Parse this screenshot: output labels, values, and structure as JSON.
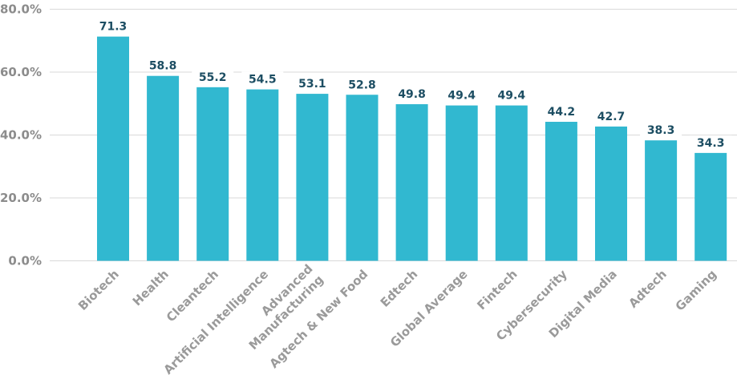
{
  "chart_data": {
    "type": "bar",
    "categories": [
      "Biotech",
      "Health",
      "Cleantech",
      "Artificial Intelligence",
      "Advanced Manufacturing",
      "Agtech & New Food",
      "Edtech",
      "Global Average",
      "Fintech",
      "Cybersecurity",
      "Digital Media",
      "Adtech",
      "Gaming"
    ],
    "category_lines": [
      [
        "Biotech"
      ],
      [
        "Health"
      ],
      [
        "Cleantech"
      ],
      [
        "Artificial Intelligence"
      ],
      [
        "Advanced",
        "Manufacturing"
      ],
      [
        "Agtech & New Food"
      ],
      [
        "Edtech"
      ],
      [
        "Global Average"
      ],
      [
        "Fintech"
      ],
      [
        "Cybersecurity"
      ],
      [
        "Digital Media"
      ],
      [
        "Adtech"
      ],
      [
        "Gaming"
      ]
    ],
    "values": [
      71.3,
      58.8,
      55.2,
      54.5,
      53.1,
      52.8,
      49.8,
      49.4,
      49.4,
      44.2,
      42.7,
      38.3,
      34.3
    ],
    "value_labels": [
      "71.3",
      "58.8",
      "55.2",
      "54.5",
      "53.1",
      "52.8",
      "49.8",
      "49.4",
      "49.4",
      "44.2",
      "42.7",
      "38.3",
      "34.3"
    ],
    "y_ticks": [
      0,
      20,
      40,
      60,
      80
    ],
    "y_tick_labels": [
      "0.0%",
      "20.0%",
      "40.0%",
      "60.0%",
      "80.0%"
    ],
    "ylim": [
      0,
      80
    ],
    "title": "",
    "xlabel": "",
    "ylabel": "",
    "grid": true,
    "legend": "none",
    "colors": {
      "bar": "#31b8d0",
      "grid": "#d9d9d9",
      "data_label": "#1d4e63",
      "tick_label": "#9a9a9a"
    }
  }
}
